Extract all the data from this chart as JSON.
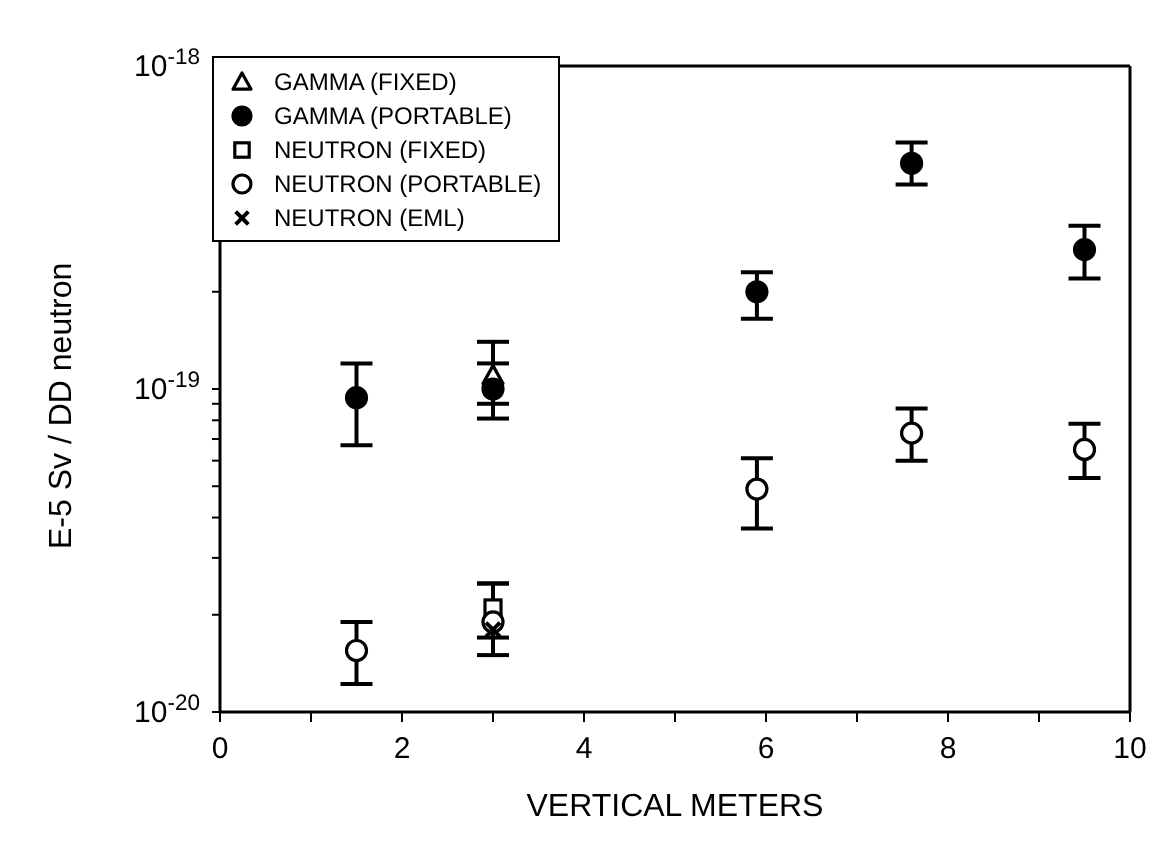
{
  "chart_data": {
    "type": "scatter",
    "xlabel": "VERTICAL METERS",
    "ylabel": "E-5 Sv / DD neutron",
    "log": "y",
    "grid": false,
    "legend": "top left",
    "xlim": [
      0,
      10
    ],
    "xticks": [
      0,
      {
        "value": 1,
        "label": null
      },
      2,
      {
        "value": 3,
        "label": null
      },
      4,
      {
        "value": 5,
        "label": null
      },
      6,
      {
        "value": 7,
        "label": null
      },
      8,
      {
        "value": 9,
        "label": null
      },
      10
    ],
    "ylim": [
      1e-20,
      1e-18
    ],
    "yticks": [
      {
        "value": 1e-20,
        "label": "10$^{-20}$"
      },
      {
        "value": 2e-20,
        "label": null
      },
      {
        "value": 3e-20,
        "label": null
      },
      {
        "value": 4e-20,
        "label": null
      },
      {
        "value": 5e-20,
        "label": null
      },
      {
        "value": 6e-20,
        "label": null
      },
      {
        "value": 7e-20,
        "label": null
      },
      {
        "value": 8e-20,
        "label": null
      },
      {
        "value": 9e-20,
        "label": null
      },
      {
        "value": 1e-19,
        "label": "10$^{-19}$"
      },
      {
        "value": 2e-19,
        "label": null
      },
      {
        "value": 3e-19,
        "label": null
      },
      {
        "value": 4e-19,
        "label": null
      },
      {
        "value": 5e-19,
        "label": null
      },
      {
        "value": 6e-19,
        "label": null
      },
      {
        "value": 7e-19,
        "label": null
      },
      {
        "value": 8e-19,
        "label": null
      },
      {
        "value": 9e-19,
        "label": null
      },
      {
        "value": 1e-18,
        "label": "10$^{-18}$"
      }
    ],
    "series": [
      {
        "name": "GAMMA (FIXED)",
        "color": "#ffffff",
        "marker": "triangle",
        "x": [
          3
        ],
        "values": [
          1.1e-19
        ],
        "errors": [
          [
            9e-20,
            1.4e-19
          ]
        ]
      },
      {
        "name": "GAMMA (PORTABLE)",
        "color": "#000000",
        "marker": "circle",
        "x": [
          1.5,
          3,
          5.9,
          7.6,
          9.5
        ],
        "values": [
          9.4e-20,
          1e-19,
          2e-19,
          5e-19,
          2.7e-19
        ],
        "errors": [
          [
            6.7e-20,
            1.2e-19
          ],
          [
            8.1e-20,
            1.2e-19
          ],
          [
            1.65e-19,
            2.3e-19
          ],
          [
            4.3e-19,
            5.8e-19
          ],
          [
            2.2e-19,
            3.2e-19
          ]
        ]
      },
      {
        "name": "NEUTRON (FIXED)",
        "color": "#ffffff",
        "marker": "square",
        "x": [
          3
        ],
        "values": [
          2.1e-20
        ],
        "errors": [
          [
            1.7e-20,
            2.5e-20
          ]
        ]
      },
      {
        "name": "NEUTRON (PORTABLE)",
        "color": "#ffffff",
        "marker": "circle",
        "x": [
          1.5,
          3,
          5.9,
          7.6,
          9.5
        ],
        "values": [
          1.55e-20,
          1.9e-20,
          4.9e-20,
          7.3e-20,
          6.5e-20
        ],
        "errors": [
          [
            1.22e-20,
            1.9e-20
          ],
          [
            1.5e-20,
            2.5e-20
          ],
          [
            3.7e-20,
            6.1e-20
          ],
          [
            6e-20,
            8.7e-20
          ],
          [
            5.3e-20,
            7.8e-20
          ]
        ]
      },
      {
        "name": "NEUTRON (EML)",
        "color": "#000000",
        "marker": "cross",
        "x": [
          3
        ],
        "values": [
          1.8e-20
        ]
      }
    ]
  }
}
